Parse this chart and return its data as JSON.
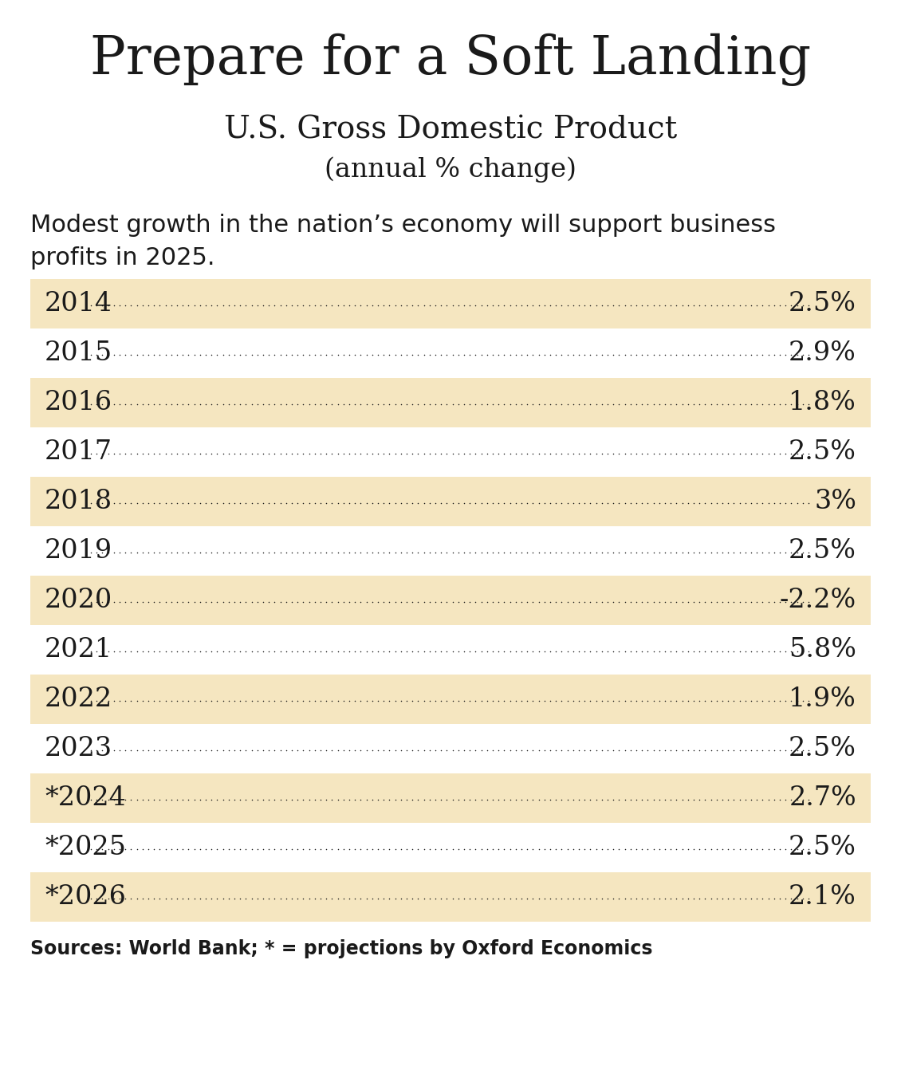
{
  "title": "Prepare for a Soft Landing",
  "subtitle1": "U.S. Gross Domestic Product",
  "subtitle2": "(annual % change)",
  "description": "Modest growth in the nation’s economy will support business\nprofits in 2025.",
  "source": "Sources: World Bank; * = projections by Oxford Economics",
  "rows": [
    {
      "year": "2014",
      "value": "2.5%",
      "highlighted": true
    },
    {
      "year": "2015",
      "value": "2.9%",
      "highlighted": false
    },
    {
      "year": "2016",
      "value": "1.8%",
      "highlighted": true
    },
    {
      "year": "2017",
      "value": "2.5%",
      "highlighted": false
    },
    {
      "year": "2018",
      "value": "3%",
      "highlighted": true
    },
    {
      "year": "2019",
      "value": "2.5%",
      "highlighted": false
    },
    {
      "year": "2020",
      "value": "-2.2%",
      "highlighted": true
    },
    {
      "year": "2021",
      "value": "5.8%",
      "highlighted": false
    },
    {
      "year": "2022",
      "value": "1.9%",
      "highlighted": true
    },
    {
      "year": "2023",
      "value": "2.5%",
      "highlighted": false
    },
    {
      "year": "*2024",
      "value": "2.7%",
      "highlighted": true
    },
    {
      "year": "*2025",
      "value": "2.5%",
      "highlighted": false
    },
    {
      "year": "*2026",
      "value": "2.1%",
      "highlighted": true
    }
  ],
  "highlight_color": "#F5E6C0",
  "bg_color": "#FFFFFF",
  "text_color": "#1a1a1a",
  "title_fontsize": 48,
  "subtitle1_fontsize": 28,
  "subtitle2_fontsize": 24,
  "desc_fontsize": 22,
  "row_fontsize": 24,
  "source_fontsize": 17
}
